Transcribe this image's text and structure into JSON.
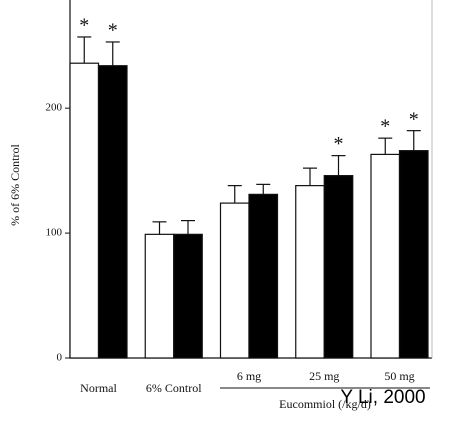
{
  "chart_data": {
    "type": "bar",
    "y_label": "% of 6% Control",
    "categories": [
      "Normal",
      "6% Control",
      "6 mg",
      "25 mg",
      "50 mg"
    ],
    "group_label": "Eucommiol (/kg/d)",
    "annotation": "Y Li, 2000",
    "series": [
      {
        "color": "#ffffff",
        "values": [
          236,
          99,
          124,
          138,
          163
        ],
        "errors": [
          21,
          10,
          14,
          14,
          13
        ],
        "significance": [
          "*",
          null,
          null,
          null,
          "*"
        ]
      },
      {
        "color": "#000000",
        "values": [
          234,
          99,
          131,
          146,
          166
        ],
        "errors": [
          19,
          11,
          8,
          16,
          16
        ],
        "significance": [
          "*",
          null,
          null,
          "*",
          "*"
        ]
      }
    ],
    "ylim": [
      0,
      285
    ],
    "yticks": [
      0,
      100,
      200
    ]
  }
}
